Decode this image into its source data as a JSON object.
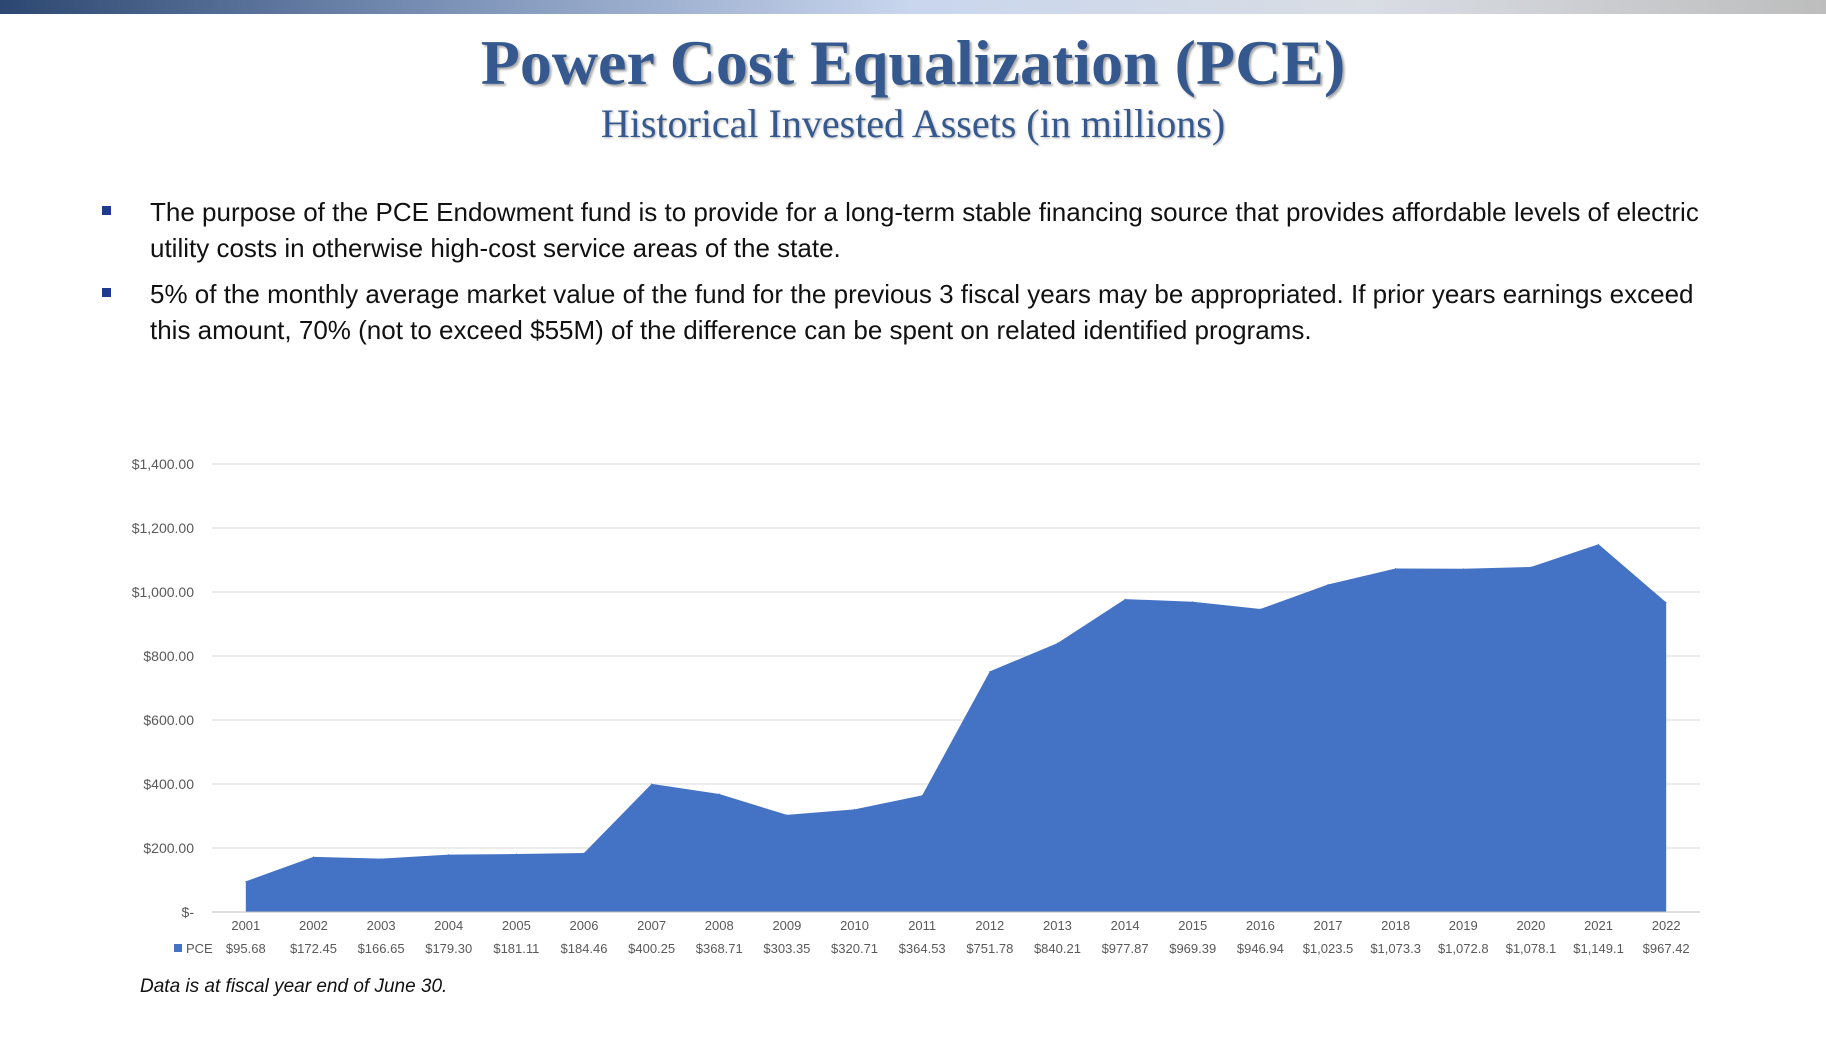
{
  "title": "Power Cost Equalization (PCE)",
  "subtitle": "Historical Invested Assets (in millions)",
  "bullets": [
    "The purpose of the PCE Endowment fund is to provide for a long-term stable financing source that provides affordable levels of electric utility costs in otherwise high-cost service areas of the state.",
    "5% of the monthly average market value of the fund for the previous 3 fiscal years may be appropriated. If prior years earnings exceed this amount, 70% (not to exceed $55M) of the difference can be spent on related identified programs."
  ],
  "footnote": "Data is at fiscal year end of June 30.",
  "colors": {
    "series": "#4472c4",
    "title": "#35598f",
    "bullet": "#1f3a93",
    "grid": "#d9d9d9"
  },
  "chart_data": {
    "type": "area",
    "categories": [
      "2001",
      "2002",
      "2003",
      "2004",
      "2005",
      "2006",
      "2007",
      "2008",
      "2009",
      "2010",
      "2011",
      "2012",
      "2013",
      "2014",
      "2015",
      "2016",
      "2017",
      "2018",
      "2019",
      "2020",
      "2021",
      "2022"
    ],
    "series": [
      {
        "name": "PCE",
        "values": [
          95.68,
          172.45,
          166.65,
          179.3,
          181.11,
          184.46,
          400.25,
          368.71,
          303.35,
          320.71,
          364.53,
          751.78,
          840.21,
          977.87,
          969.39,
          946.94,
          1023.5,
          1073.3,
          1072.8,
          1078.1,
          1149.1,
          967.42
        ],
        "value_labels": [
          "$95.68",
          "$172.45",
          "$166.65",
          "$179.30",
          "$181.11",
          "$184.46",
          "$400.25",
          "$368.71",
          "$303.35",
          "$320.71",
          "$364.53",
          "$751.78",
          "$840.21",
          "$977.87",
          "$969.39",
          "$946.94",
          "$1,023.5",
          "$1,073.3",
          "$1,072.8",
          "$1,078.1",
          "$1,149.1",
          "$967.42"
        ]
      }
    ],
    "y_ticks": [
      0,
      200,
      400,
      600,
      800,
      1000,
      1200,
      1400
    ],
    "y_tick_labels": [
      "$-",
      "$200.00",
      "$400.00",
      "$600.00",
      "$800.00",
      "$1,000.00",
      "$1,200.00",
      "$1,400.00"
    ],
    "ylim": [
      0,
      1400
    ],
    "grid": true,
    "legend": "data table below x-axis"
  }
}
